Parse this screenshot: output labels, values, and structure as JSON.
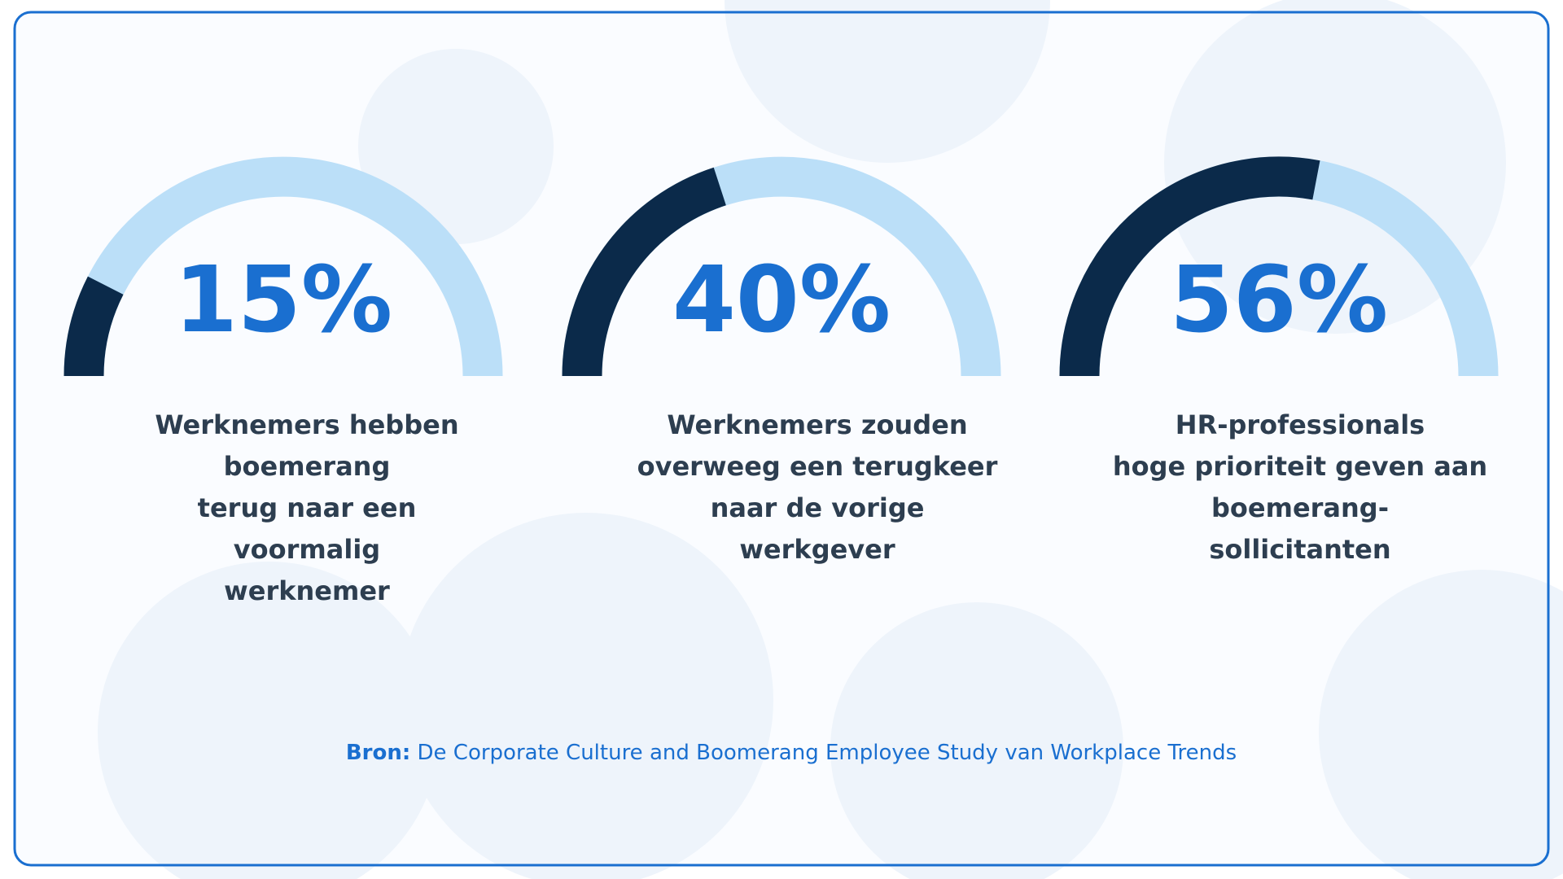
{
  "chart_data": [
    {
      "type": "gauge",
      "values": [
        15
      ],
      "value_labels": [
        "15%"
      ],
      "ylim": [
        0,
        100
      ],
      "color": "#0b2a4a",
      "track_color": "#bbdff8",
      "caption": [
        "Werknemers hebben",
        "boemerang",
        "terug naar een",
        "voormalig",
        "werknemer"
      ]
    },
    {
      "type": "gauge",
      "values": [
        40
      ],
      "value_labels": [
        "40%"
      ],
      "ylim": [
        0,
        100
      ],
      "color": "#0b2a4a",
      "track_color": "#bbdff8",
      "caption": [
        "Werknemers zouden",
        "overweeg een terugkeer",
        "naar de vorige",
        "werkgever"
      ]
    },
    {
      "type": "gauge",
      "values": [
        56
      ],
      "value_labels": [
        "56%"
      ],
      "ylim": [
        0,
        100
      ],
      "color": "#0b2a4a",
      "track_color": "#bbdff8",
      "caption": [
        "HR-professionals",
        "hoge prioriteit geven aan",
        "boemerang-",
        "sollicitanten"
      ]
    }
  ],
  "source": {
    "label": "Bron:",
    "text": "De Corporate Culture and Boomerang Employee Study van Workplace Trends"
  }
}
